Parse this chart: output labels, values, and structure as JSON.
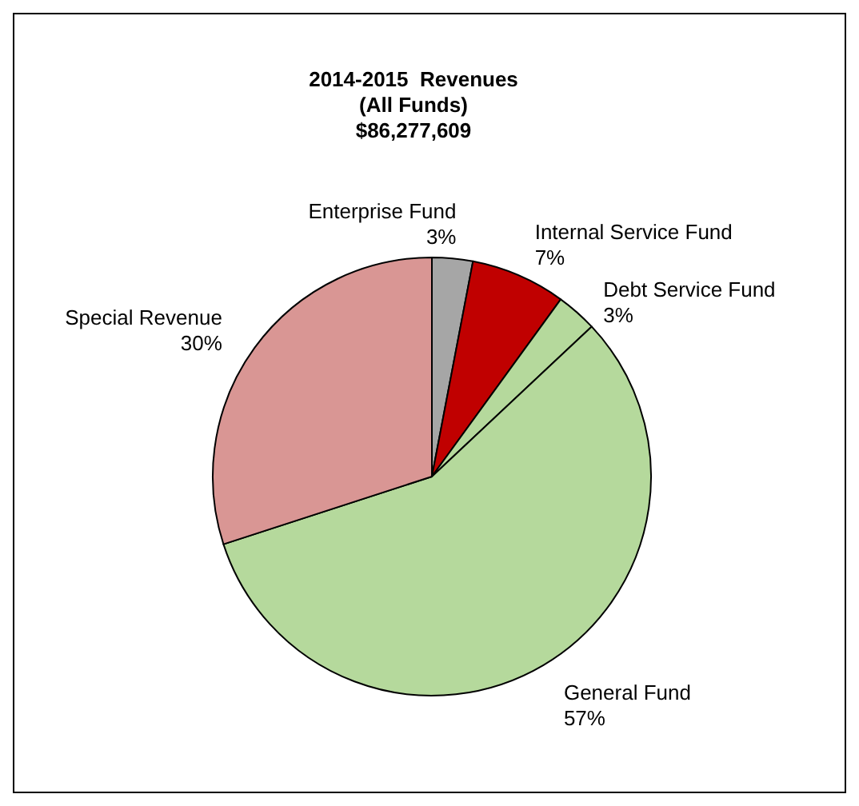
{
  "chart_data": {
    "type": "pie",
    "title": "2014-2015  Revenues\n(All Funds)\n$86,277,609",
    "categories": [
      "Enterprise Fund",
      "Internal Service Fund",
      "Debt Service Fund",
      "General Fund",
      "Special Revenue"
    ],
    "values": [
      3,
      7,
      3,
      57,
      30
    ],
    "value_labels": [
      "3%",
      "7%",
      "3%",
      "57%",
      "30%"
    ],
    "colors": [
      "#a6a6a6",
      "#c00000",
      "#b5d99c",
      "#b5d99c",
      "#d99694"
    ]
  }
}
